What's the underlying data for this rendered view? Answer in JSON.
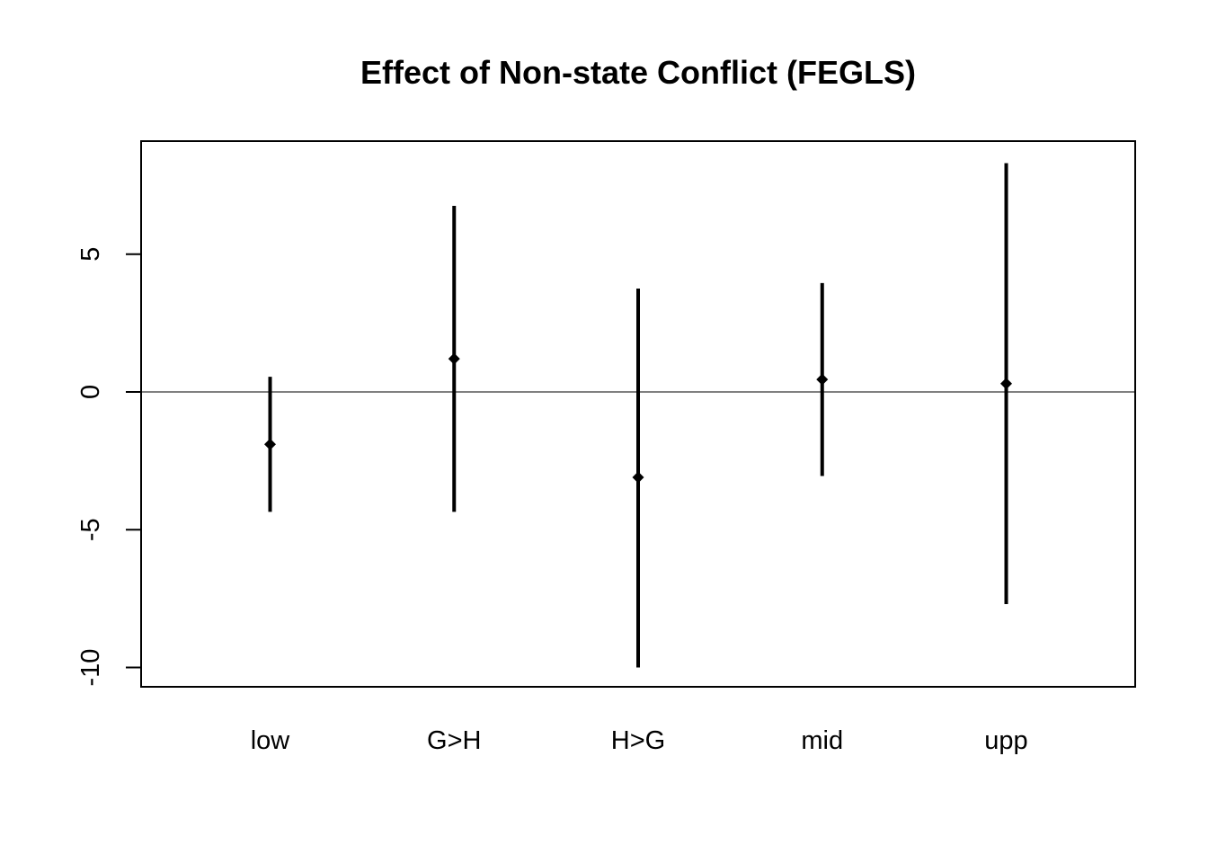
{
  "chart_data": {
    "type": "scatter",
    "title": "Effect of Non-state Conflict (FEGLS)",
    "xlabel": "",
    "ylabel": "",
    "categories": [
      "low",
      "G>H",
      "H>G",
      "mid",
      "upp"
    ],
    "estimates": [
      -1.9,
      1.2,
      -3.1,
      0.45,
      0.3
    ],
    "lower": [
      -4.35,
      -4.35,
      -10.0,
      -3.05,
      -7.7
    ],
    "upper": [
      0.55,
      6.75,
      3.75,
      3.95,
      8.3
    ],
    "ylim": [
      -10.7,
      9.1
    ],
    "yticks": [
      -10,
      -5,
      0,
      5
    ],
    "ytick_labels": [
      "-10",
      "-5",
      "0",
      "5"
    ],
    "reference_line": 0,
    "grid": false,
    "colors": {
      "marks": "#000000",
      "axis": "#000000",
      "background": "#ffffff"
    }
  }
}
